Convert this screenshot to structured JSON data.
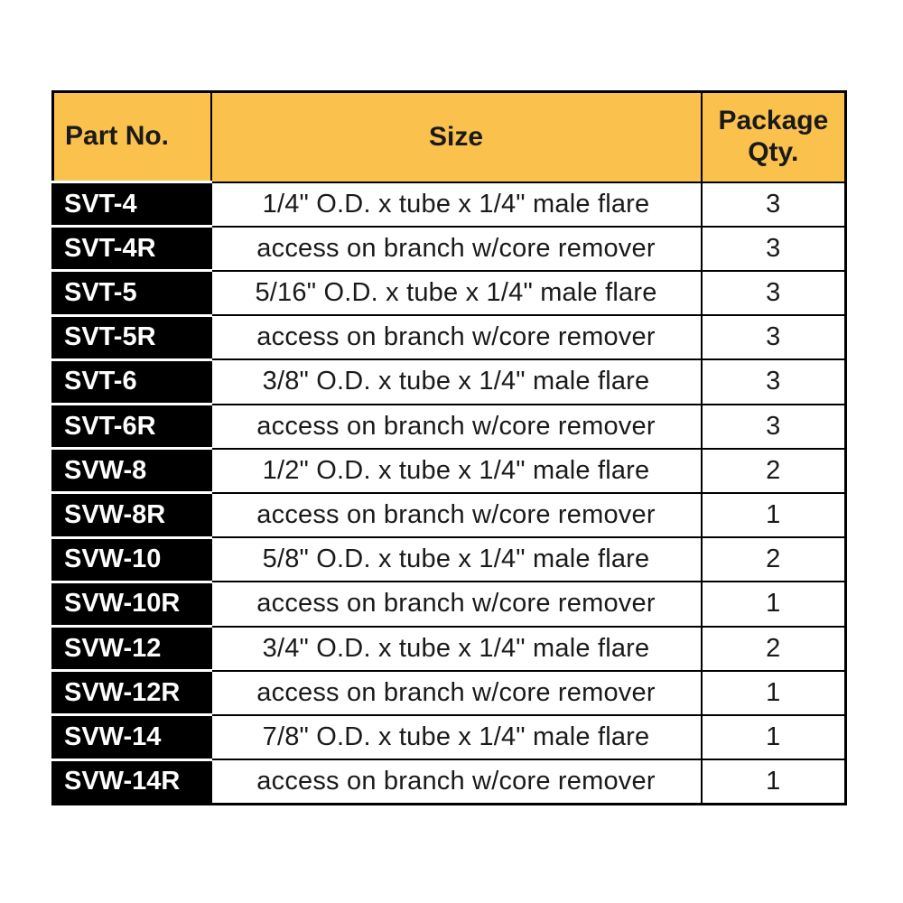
{
  "colors": {
    "header_bg": "#FAC14D",
    "part_col_bg": "#000000",
    "part_col_text": "#ffffff",
    "border": "#000000",
    "page_bg": "#ffffff"
  },
  "table": {
    "columns": [
      {
        "key": "part",
        "label": "Part No."
      },
      {
        "key": "size",
        "label": "Size"
      },
      {
        "key": "qty",
        "label": "Package Qty."
      }
    ],
    "rows": [
      {
        "part": "SVT-4",
        "size": "1/4\" O.D. x tube x 1/4\" male flare",
        "qty": "3"
      },
      {
        "part": "SVT-4R",
        "size": "access on branch w/core remover",
        "qty": "3"
      },
      {
        "part": "SVT-5",
        "size": "5/16\" O.D. x tube x 1/4\" male flare",
        "qty": "3"
      },
      {
        "part": "SVT-5R",
        "size": "access on branch w/core remover",
        "qty": "3"
      },
      {
        "part": "SVT-6",
        "size": "3/8\" O.D. x tube x 1/4\" male flare",
        "qty": "3"
      },
      {
        "part": "SVT-6R",
        "size": "access on branch w/core remover",
        "qty": "3"
      },
      {
        "part": "SVW-8",
        "size": "1/2\" O.D. x tube x 1/4\" male flare",
        "qty": "2"
      },
      {
        "part": "SVW-8R",
        "size": "access on branch w/core remover",
        "qty": "1"
      },
      {
        "part": "SVW-10",
        "size": "5/8\" O.D. x tube x 1/4\" male flare",
        "qty": "2"
      },
      {
        "part": "SVW-10R",
        "size": "access on branch w/core remover",
        "qty": "1"
      },
      {
        "part": "SVW-12",
        "size": "3/4\" O.D. x tube x 1/4\" male flare",
        "qty": "2"
      },
      {
        "part": "SVW-12R",
        "size": "access on branch w/core remover",
        "qty": "1"
      },
      {
        "part": "SVW-14",
        "size": "7/8\" O.D. x tube x 1/4\" male flare",
        "qty": "1"
      },
      {
        "part": "SVW-14R",
        "size": "access on branch w/core remover",
        "qty": "1"
      }
    ]
  }
}
